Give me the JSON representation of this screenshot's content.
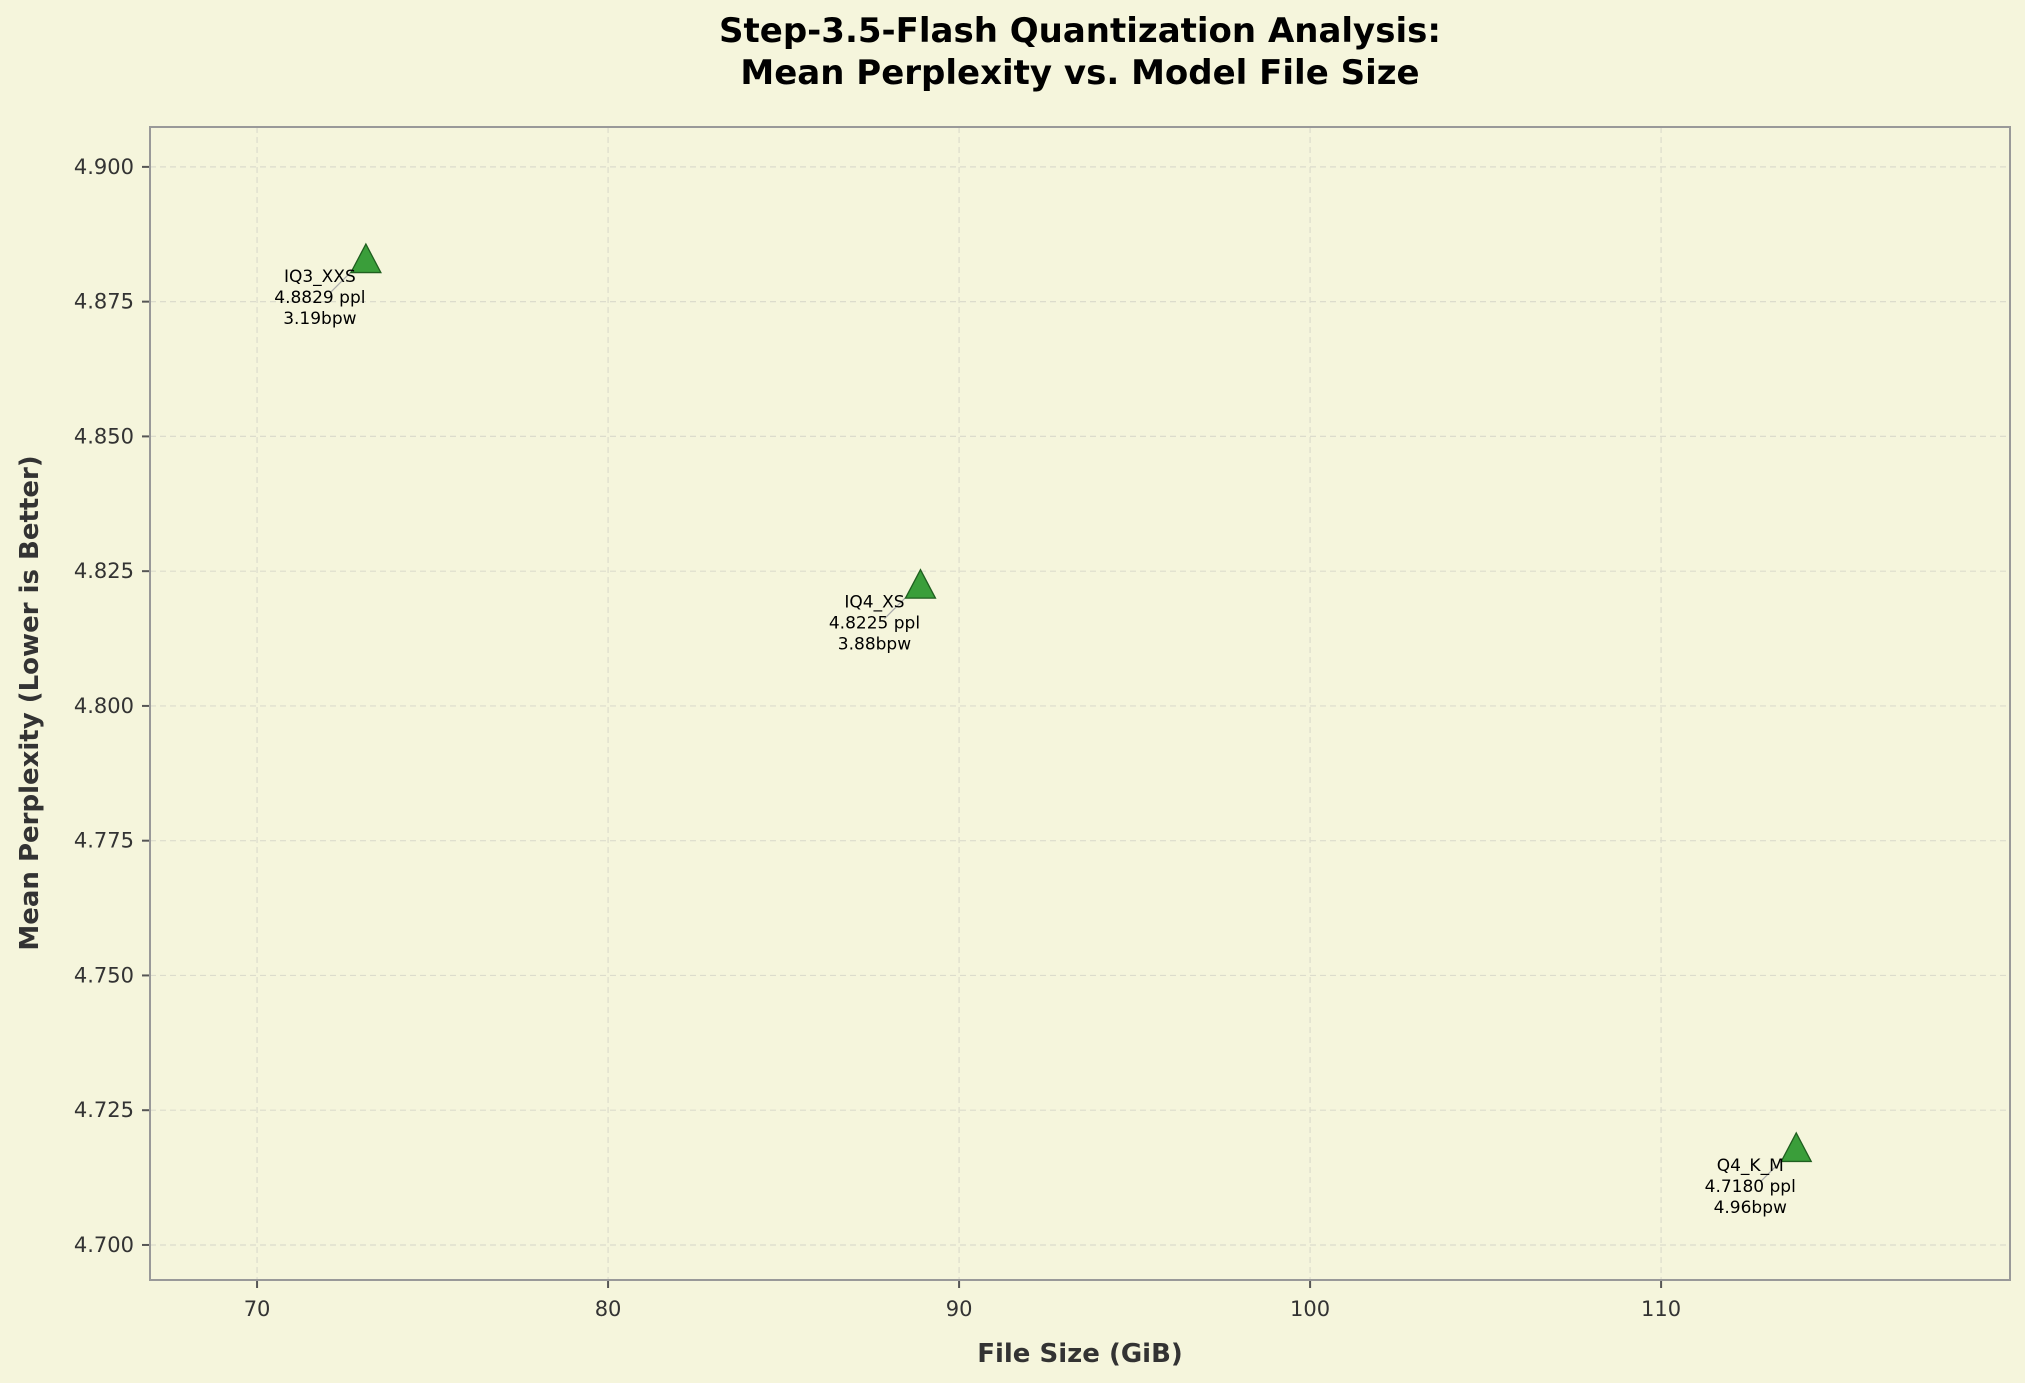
{
  "chart_data": {
    "type": "scatter",
    "title": "Step-3.5-Flash Quantization Analysis:\nMean Perplexity vs. Model File Size",
    "title_lines": [
      "Step-3.5-Flash Quantization Analysis:",
      "Mean Perplexity vs. Model File Size"
    ],
    "xlabel": "File Size (GiB)",
    "ylabel": "Mean Perplexity (Lower is Better)",
    "xlim": [
      66.95,
      119.94
    ],
    "ylim": [
      4.6935,
      4.9074
    ],
    "xticks": [
      70,
      80,
      90,
      100,
      110
    ],
    "yticks": [
      "4.700",
      "4.725",
      "4.750",
      "4.775",
      "4.800",
      "4.825",
      "4.850",
      "4.875",
      "4.900"
    ],
    "grid": true,
    "legend": null,
    "marker": "triangle",
    "colors": {
      "marker_fill": "#3a9e3a",
      "marker_edge": "#1f5f1f",
      "background": "#f5f5dc"
    },
    "points": [
      {
        "label": "IQ3_XXS",
        "x": 73.1,
        "y": 4.8829,
        "ppl_text": "4.8829 ppl",
        "bpw_text": "3.19bpw"
      },
      {
        "label": "IQ4_XS",
        "x": 88.9,
        "y": 4.8225,
        "ppl_text": "4.8225 ppl",
        "bpw_text": "3.88bpw"
      },
      {
        "label": "Q4_K_M",
        "x": 113.85,
        "y": 4.718,
        "ppl_text": "4.7180 ppl",
        "bpw_text": "4.96bpw"
      }
    ]
  }
}
